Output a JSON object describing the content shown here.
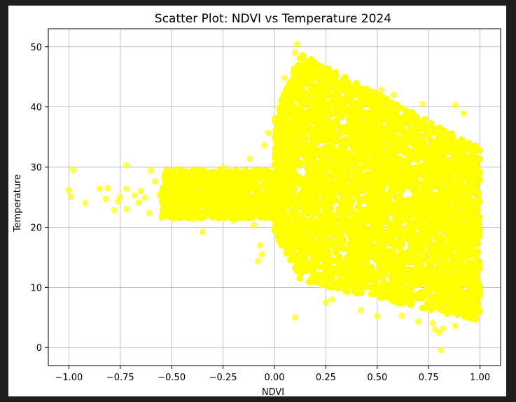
{
  "chart_data": {
    "type": "scatter",
    "title": "Scatter Plot: NDVI vs Temperature 2024",
    "xlabel": "NDVI",
    "ylabel": "Temperature",
    "xlim": [
      -1.1,
      1.1
    ],
    "ylim": [
      -3,
      53
    ],
    "xticks": [
      -1.0,
      -0.75,
      -0.5,
      -0.25,
      0.0,
      0.25,
      0.5,
      0.75,
      1.0
    ],
    "xtick_labels": [
      "−1.00",
      "−0.75",
      "−0.50",
      "−0.25",
      "0.00",
      "0.25",
      "0.50",
      "0.75",
      "1.00"
    ],
    "yticks": [
      0,
      10,
      20,
      30,
      40,
      50
    ],
    "ytick_labels": [
      "0",
      "10",
      "20",
      "30",
      "40",
      "50"
    ],
    "grid": true,
    "marker_color": "#ffff00",
    "marker_alpha": 0.7,
    "points": [
      [
        -1.0,
        26.2
      ],
      [
        -0.99,
        25.1
      ],
      [
        -0.98,
        29.5
      ],
      [
        -0.92,
        24.0
      ],
      [
        -0.85,
        26.4
      ],
      [
        -0.82,
        24.7
      ],
      [
        -0.81,
        26.5
      ],
      [
        -0.78,
        22.8
      ],
      [
        -0.76,
        24.3
      ],
      [
        -0.75,
        25.0
      ],
      [
        -0.72,
        30.3
      ],
      [
        -0.72,
        26.4
      ],
      [
        -0.72,
        23.0
      ],
      [
        -0.68,
        25.3
      ],
      [
        -0.66,
        24.1
      ],
      [
        -0.65,
        26.0
      ],
      [
        -0.63,
        24.9
      ],
      [
        -0.61,
        22.4
      ],
      [
        -0.6,
        29.4
      ],
      [
        -0.58,
        27.6
      ],
      [
        -0.56,
        25.4
      ],
      [
        -0.53,
        28.1
      ],
      [
        -0.5,
        23.3
      ],
      [
        -0.47,
        29.7
      ],
      [
        -0.45,
        22.1
      ],
      [
        -0.42,
        27.0
      ],
      [
        -0.4,
        21.3
      ],
      [
        -0.37,
        29.6
      ],
      [
        -0.35,
        19.2
      ],
      [
        -0.33,
        23.5
      ],
      [
        -0.3,
        28.4
      ],
      [
        -0.27,
        21.7
      ],
      [
        -0.25,
        29.9
      ],
      [
        -0.22,
        24.2
      ],
      [
        -0.2,
        21.1
      ],
      [
        -0.17,
        29.3
      ],
      [
        -0.15,
        22.6
      ],
      [
        -0.12,
        31.4
      ],
      [
        -0.1,
        20.4
      ],
      [
        -0.08,
        14.4
      ],
      [
        -0.07,
        17.0
      ],
      [
        -0.06,
        15.5
      ],
      [
        -0.05,
        33.6
      ],
      [
        -0.04,
        22.0
      ],
      [
        -0.03,
        35.7
      ],
      [
        0.05,
        44.8
      ],
      [
        0.1,
        49.0
      ],
      [
        0.11,
        50.4
      ],
      [
        0.1,
        5.0
      ],
      [
        0.17,
        44.5
      ],
      [
        0.18,
        47.5
      ],
      [
        0.22,
        11.3
      ],
      [
        0.25,
        7.5
      ],
      [
        0.28,
        8.0
      ],
      [
        0.35,
        44.0
      ],
      [
        0.42,
        6.2
      ],
      [
        0.45,
        43.0
      ],
      [
        0.5,
        5.2
      ],
      [
        0.52,
        42.8
      ],
      [
        0.58,
        42.0
      ],
      [
        0.62,
        5.3
      ],
      [
        0.7,
        4.3
      ],
      [
        0.72,
        40.5
      ],
      [
        0.77,
        4.1
      ],
      [
        0.78,
        3.0
      ],
      [
        0.8,
        2.5
      ],
      [
        0.81,
        -0.4
      ],
      [
        0.82,
        3.2
      ],
      [
        0.88,
        3.6
      ],
      [
        0.88,
        40.3
      ],
      [
        0.92,
        38.9
      ],
      [
        0.94,
        5.0
      ],
      [
        0.98,
        4.7
      ],
      [
        0.99,
        11.2
      ],
      [
        0.99,
        29.5
      ],
      [
        0.99,
        20.0
      ],
      [
        0.98,
        15.0
      ],
      [
        0.97,
        33.0
      ]
    ],
    "dense_regions": [
      {
        "xmin": -0.55,
        "xmax": 0.02,
        "ymin": 21.5,
        "ymax": 29.5
      },
      {
        "xmin": 0.0,
        "xmax": 1.0,
        "ymin": 3.5,
        "ymax": 42.0
      }
    ]
  }
}
